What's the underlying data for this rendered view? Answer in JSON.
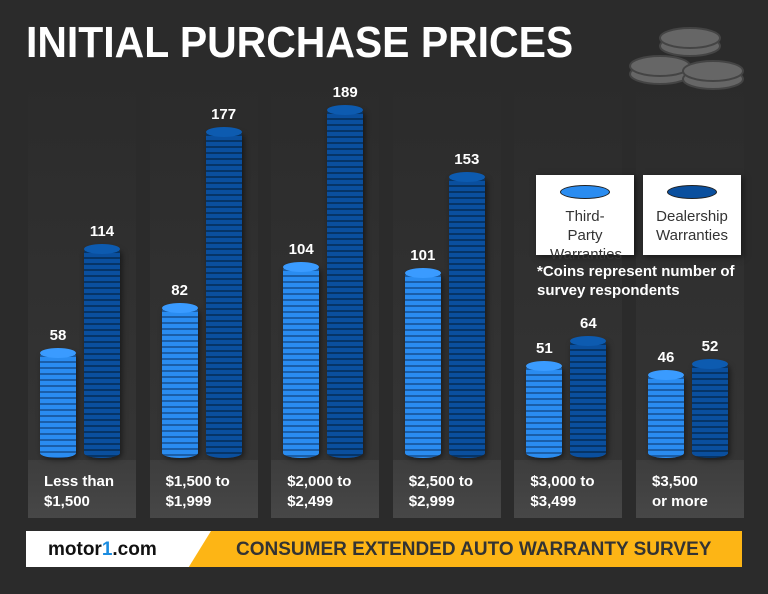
{
  "chart_data": {
    "type": "bar",
    "title": "INITIAL PURCHASE PRICES",
    "categories": [
      "Less than\n$1,500",
      "$1,500 to\n$1,999",
      "$2,000 to\n$2,499",
      "$2,500 to\n$2,999",
      "$3,000 to\n$3,499",
      "$3,500\nor more"
    ],
    "series": [
      {
        "name": "Third-Party Warranties",
        "values": [
          58,
          82,
          104,
          101,
          51,
          46
        ],
        "color": "#2a8cf0"
      },
      {
        "name": "Dealership Warranties",
        "values": [
          114,
          177,
          189,
          153,
          64,
          52
        ],
        "color": "#0a4f9e"
      }
    ],
    "ylim": [
      0,
      189
    ],
    "legend_placement": "right",
    "note": "*Coins represent number of survey respondents"
  },
  "legend": {
    "third_party": "Third-Party Warranties",
    "dealership": "Dealership Warranties"
  },
  "footer": {
    "logo": "motor1.com",
    "survey": "CONSUMER EXTENDED AUTO WARRANTY SURVEY"
  },
  "colors": {
    "background": "#2b2b2b",
    "accent": "#fdb515"
  }
}
